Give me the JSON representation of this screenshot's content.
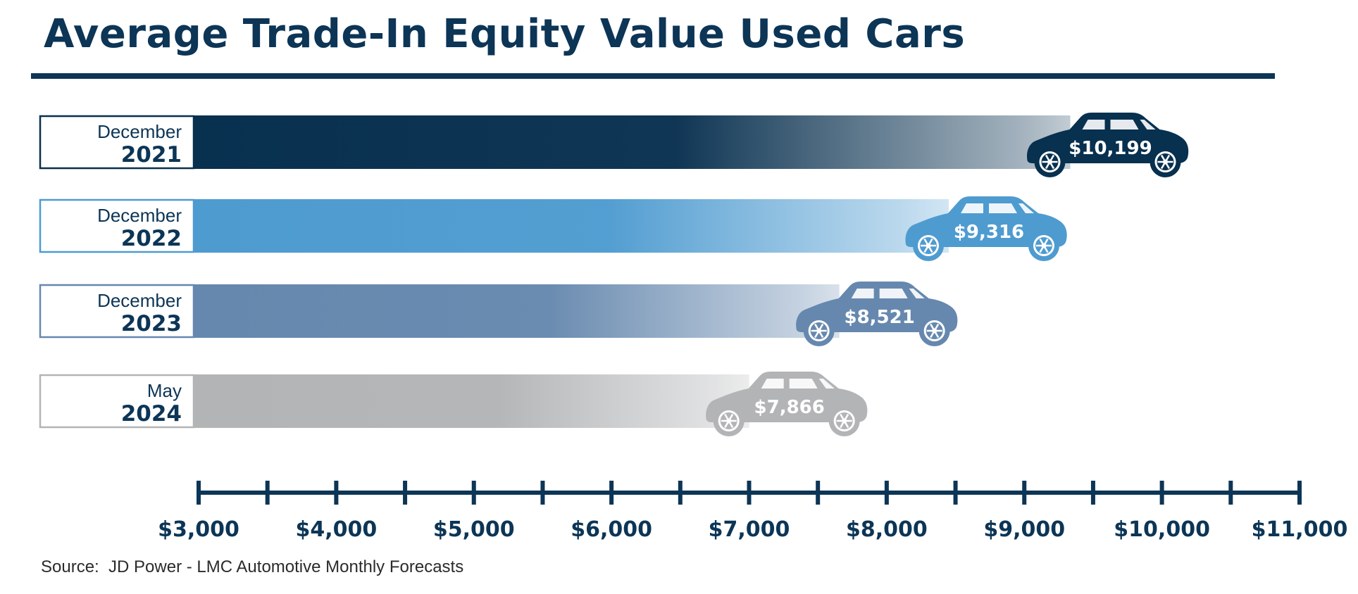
{
  "title": "Average Trade-In Equity Value Used Cars",
  "source": "Source:  JD Power - LMC Automotive Monthly Forecasts",
  "chart_data": {
    "type": "bar",
    "orientation": "horizontal",
    "title": "Average Trade-In Equity Value Used Cars",
    "categories": [
      {
        "label_top": "December",
        "label_year": "2021"
      },
      {
        "label_top": "December",
        "label_year": "2022"
      },
      {
        "label_top": "December",
        "label_year": "2023"
      },
      {
        "label_top": "May",
        "label_year": "2024"
      }
    ],
    "values": [
      10199,
      9316,
      8521,
      7866
    ],
    "data_labels": [
      "$10,199",
      "$9,316",
      "$8,521",
      "$7,866"
    ],
    "colors": [
      "#08304f",
      "#4e9bd0",
      "#6688ae",
      "#b2b4b6"
    ],
    "xlim": [
      3000,
      11000
    ],
    "x_ticks": [
      3000,
      3500,
      4000,
      4500,
      5000,
      5500,
      6000,
      6500,
      7000,
      7500,
      8000,
      8500,
      9000,
      9500,
      10000,
      10500,
      11000
    ],
    "x_tick_labels": [
      "$3,000",
      "$4,000",
      "$5,000",
      "$6,000",
      "$7,000",
      "$8,000",
      "$9,000",
      "$10,000",
      "$11,000"
    ],
    "x_tick_label_values": [
      3000,
      4000,
      5000,
      6000,
      7000,
      8000,
      9000,
      10000,
      11000
    ],
    "axis_color": "#0c3556",
    "grid": false,
    "legend": "none",
    "marker_icon": "car-icon"
  }
}
